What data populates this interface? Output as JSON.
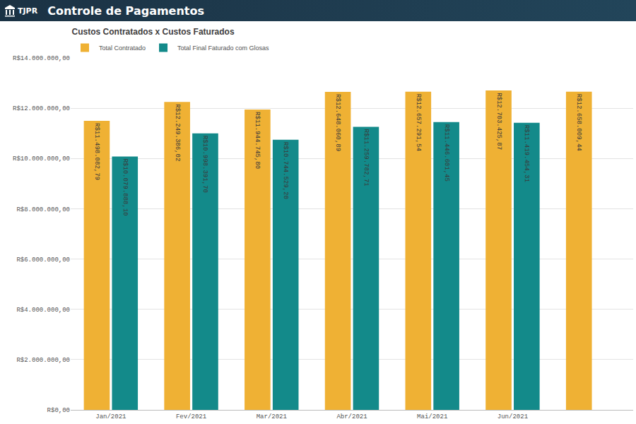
{
  "header": {
    "logo": "TJPR",
    "title": "Controle de Pagamentos"
  },
  "chart_data": {
    "type": "bar",
    "title": "Custos Contratados x Custos Faturados",
    "categories": [
      "Jan/2021",
      "Fev/2021",
      "Mar/2021",
      "Abr/2021",
      "Mai/2021",
      "Jun/2021",
      null
    ],
    "series": [
      {
        "name": "Total Contratado",
        "color": "#efb134",
        "values": [
          11498082.79,
          12249386.02,
          11944745.8,
          12648060.89,
          12657291.54,
          12703425.87,
          12658009.44
        ],
        "value_labels": [
          "R$11.498.082,79",
          "R$12.249.386,02",
          "R$11.944.745,80",
          "R$12.648.060,89",
          "R$12.657.291,54",
          "R$12.703.425,87",
          "R$12.658.009,44"
        ]
      },
      {
        "name": "Total Final Faturado com Glosas",
        "color": "#138a8a",
        "values": [
          10079888.1,
          10998391.7,
          10744529.2,
          11259782.71,
          11446601.45,
          11419454.31,
          null
        ],
        "value_labels": [
          "R$10.079.888,10",
          "R$10.998.391,70",
          "R$10.744.529,20",
          "R$11.259.782,71",
          "R$11.446.601,45",
          "R$11.419.454,31",
          null
        ]
      }
    ],
    "ylim": [
      0,
      14000000
    ],
    "yticks": [
      {
        "value": 0,
        "label": "R$0,00"
      },
      {
        "value": 2000000,
        "label": "R$2.000.000,00"
      },
      {
        "value": 4000000,
        "label": "R$4.000.000,00"
      },
      {
        "value": 6000000,
        "label": "R$6.000.000,00"
      },
      {
        "value": 8000000,
        "label": "R$8.000.000,00"
      },
      {
        "value": 10000000,
        "label": "R$10.000.000,00"
      },
      {
        "value": 12000000,
        "label": "R$12.000.000,00"
      },
      {
        "value": 14000000,
        "label": "R$14.000.000,00"
      }
    ],
    "grid": true,
    "legend": "top-left",
    "data_labels": true
  }
}
